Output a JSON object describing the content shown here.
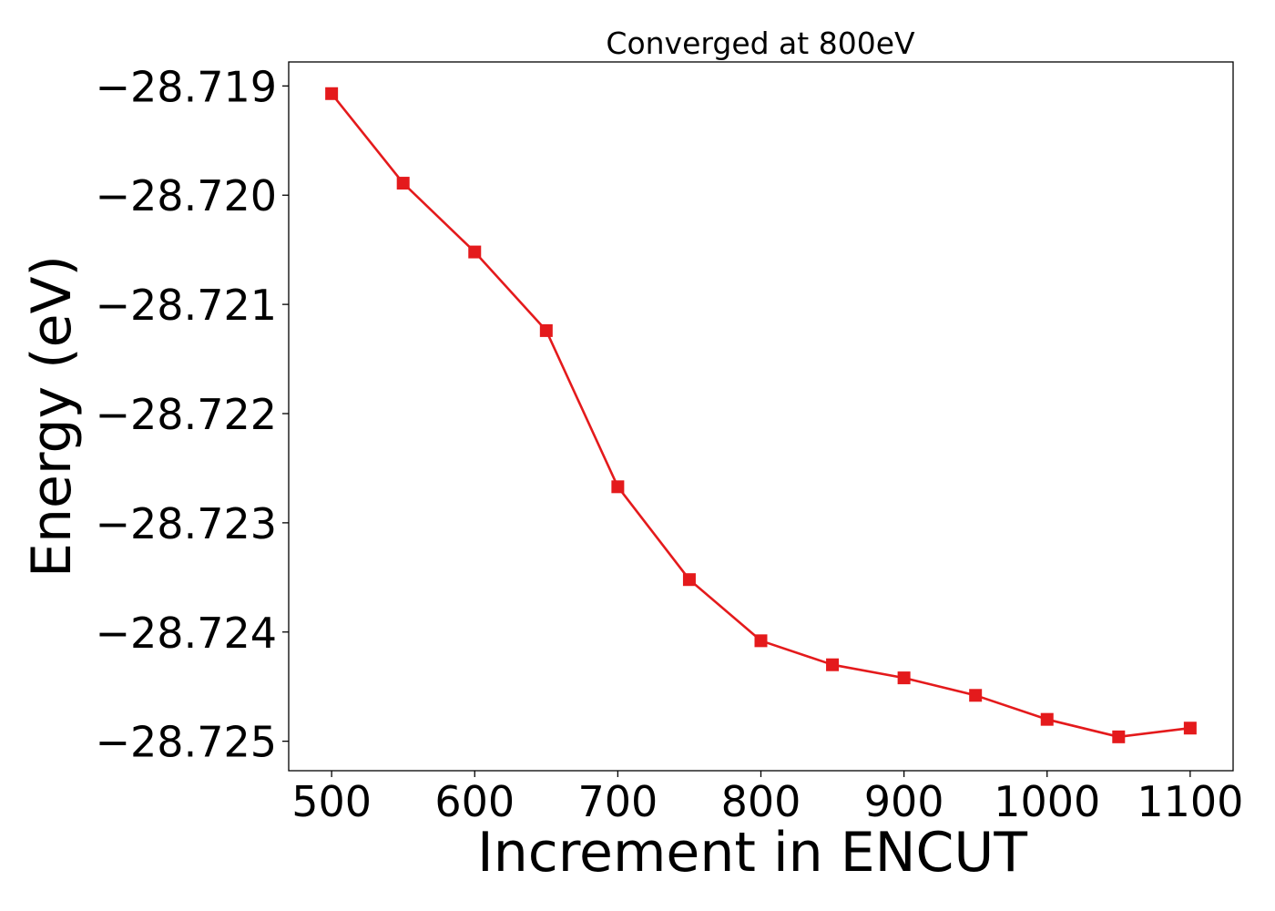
{
  "chart_data": {
    "type": "line",
    "title": "Converged at 800eV",
    "xlabel": "Increment in ENCUT",
    "ylabel": "Energy (eV)",
    "xlim": [
      470,
      1130
    ],
    "ylim": [
      -28.72527,
      -28.71878
    ],
    "xticks": [
      500,
      600,
      700,
      800,
      900,
      1000,
      1100
    ],
    "xtick_labels": [
      "500",
      "600",
      "700",
      "800",
      "900",
      "1000",
      "1100"
    ],
    "yticks": [
      -28.719,
      -28.72,
      -28.721,
      -28.722,
      -28.723,
      -28.724,
      -28.725
    ],
    "ytick_labels": [
      "−28.719",
      "−28.720",
      "−28.721",
      "−28.722",
      "−28.723",
      "−28.724",
      "−28.725"
    ],
    "grid": false,
    "marker": "square",
    "color": "#e41a1c",
    "series": [
      {
        "x": [
          500,
          550,
          600,
          650,
          700,
          750,
          800,
          850,
          900,
          950,
          1000,
          1050,
          1100
        ],
        "y": [
          -28.71907,
          -28.71989,
          -28.72052,
          -28.72124,
          -28.72267,
          -28.72352,
          -28.72408,
          -28.7243,
          -28.72442,
          -28.72458,
          -28.7248,
          -28.72496,
          -28.72488
        ]
      }
    ]
  }
}
